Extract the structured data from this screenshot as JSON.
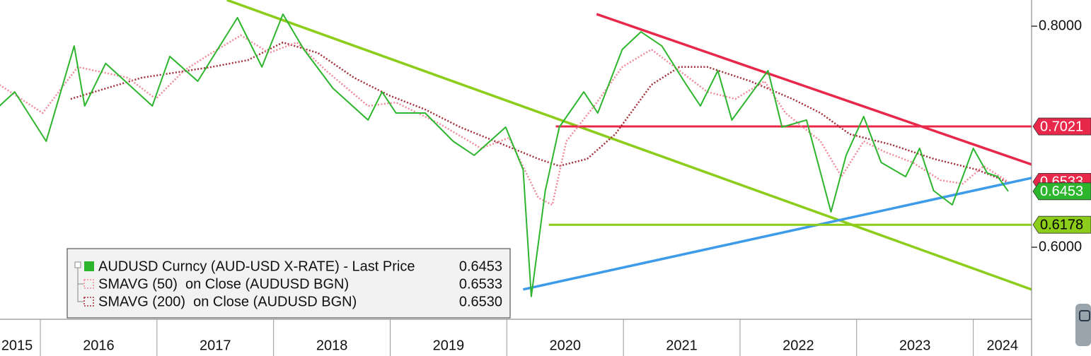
{
  "chart_data": {
    "type": "line",
    "log_scale": true,
    "xlim": [
      2015.654,
      2024.5
    ],
    "ylim": [
      0.5463,
      0.8277
    ],
    "xticks": [
      {
        "value": 2015.8,
        "label": "2015"
      },
      {
        "value": 2016.5,
        "label": "2016"
      },
      {
        "value": 2017.5,
        "label": "2017"
      },
      {
        "value": 2018.5,
        "label": "2018"
      },
      {
        "value": 2019.5,
        "label": "2019"
      },
      {
        "value": 2020.5,
        "label": "2020"
      },
      {
        "value": 2021.5,
        "label": "2021"
      },
      {
        "value": 2022.5,
        "label": "2022"
      },
      {
        "value": 2023.5,
        "label": "2023"
      },
      {
        "value": 2024.25,
        "label": "2024"
      }
    ],
    "yticks": [
      {
        "value": 0.8,
        "label": "0.8000"
      },
      {
        "value": 0.6,
        "label": "0.6000"
      }
    ],
    "series": [
      {
        "name": "AUDUSD Curncy (AUD-USD X-RATE) - Last Price",
        "color": "#2db52d",
        "tag_color": "#2db52d",
        "last": {
          "value": 0.6453,
          "label": "0.6453"
        },
        "x": [
          2015.65,
          2015.78,
          2016.05,
          2016.29,
          2016.38,
          2016.56,
          2016.96,
          2017.11,
          2017.35,
          2017.69,
          2017.9,
          2018.08,
          2018.26,
          2018.51,
          2018.81,
          2018.93,
          2019.05,
          2019.3,
          2019.54,
          2019.72,
          2019.99,
          2020.14,
          2020.21,
          2020.33,
          2020.45,
          2020.66,
          2020.78,
          2020.99,
          2021.15,
          2021.33,
          2021.54,
          2021.66,
          2021.81,
          2021.93,
          2022.24,
          2022.36,
          2022.57,
          2022.78,
          2022.91,
          2023.06,
          2023.21,
          2023.42,
          2023.54,
          2023.66,
          2023.82,
          2024.0,
          2024.12,
          2024.21,
          2024.3
        ],
        "values": [
          0.7211,
          0.7344,
          0.6887,
          0.7796,
          0.7211,
          0.7621,
          0.7211,
          0.7691,
          0.7447,
          0.8089,
          0.7586,
          0.8126,
          0.7761,
          0.7378,
          0.708,
          0.7344,
          0.7145,
          0.7145,
          0.6887,
          0.6762,
          0.7015,
          0.6638,
          0.5627,
          0.6458,
          0.7015,
          0.7344,
          0.7145,
          0.7761,
          0.7941,
          0.7796,
          0.7412,
          0.7211,
          0.755,
          0.708,
          0.755,
          0.7015,
          0.708,
          0.6282,
          0.6762,
          0.7112,
          0.67,
          0.6577,
          0.6824,
          0.6458,
          0.634,
          0.6824,
          0.6608,
          0.6577,
          0.6453
        ]
      },
      {
        "name": "SMAVG (50)  on Close (AUDUSD BGN)",
        "color": "#f08a9a",
        "tag_color": "#e8284a",
        "last": {
          "value": 0.6533,
          "label": "0.6533"
        },
        "x": [
          2015.65,
          2016.02,
          2016.32,
          2016.75,
          2016.99,
          2017.23,
          2017.47,
          2017.72,
          2017.96,
          2018.2,
          2018.45,
          2018.81,
          2019.05,
          2019.42,
          2019.78,
          2020.02,
          2020.27,
          2020.39,
          2020.51,
          2020.75,
          2020.99,
          2021.24,
          2021.48,
          2021.72,
          2021.96,
          2022.21,
          2022.39,
          2022.69,
          2022.87,
          2023.06,
          2023.24,
          2023.48,
          2023.72,
          2023.91,
          2024.09,
          2024.3
        ],
        "values": [
          0.7412,
          0.7145,
          0.7586,
          0.7481,
          0.7277,
          0.755,
          0.7726,
          0.7905,
          0.7726,
          0.7832,
          0.755,
          0.7211,
          0.7244,
          0.7048,
          0.6824,
          0.6919,
          0.6399,
          0.634,
          0.6887,
          0.7211,
          0.7586,
          0.7761,
          0.755,
          0.7344,
          0.7277,
          0.7447,
          0.7145,
          0.6887,
          0.6577,
          0.6887,
          0.6793,
          0.67,
          0.6547,
          0.6517,
          0.6669,
          0.6533
        ]
      },
      {
        "name": "SMAVG (200)  on Close (AUDUSD BGN)",
        "color": "#a0303a",
        "last": {
          "value": 0.653,
          "label": "0.6530"
        },
        "x": [
          2016.26,
          2016.87,
          2017.47,
          2017.78,
          2018.08,
          2018.38,
          2018.69,
          2018.99,
          2019.3,
          2019.6,
          2019.9,
          2020.27,
          2020.45,
          2020.69,
          2020.93,
          2021.24,
          2021.48,
          2021.72,
          2022.09,
          2022.45,
          2022.69,
          2022.94,
          2023.3,
          2023.66,
          2024.03,
          2024.3
        ],
        "values": [
          0.7277,
          0.7481,
          0.7586,
          0.7654,
          0.7832,
          0.7726,
          0.7481,
          0.7311,
          0.7178,
          0.7015,
          0.6887,
          0.6731,
          0.6669,
          0.6731,
          0.6951,
          0.7412,
          0.7586,
          0.7586,
          0.7447,
          0.7277,
          0.7145,
          0.6951,
          0.6856,
          0.6731,
          0.6638,
          0.653
        ]
      }
    ],
    "trendlines": [
      {
        "color": "#8ccc1a",
        "x": [
          2017.6,
          2024.5
        ],
        "values": [
          0.8277,
          0.5679
        ]
      },
      {
        "color": "#e8284a",
        "x": [
          2020.77,
          2024.5
        ],
        "values": [
          0.8126,
          0.6682
        ]
      },
      {
        "color": "#3d9be9",
        "x": [
          2020.14,
          2024.5
        ],
        "values": [
          0.5679,
          0.6566
        ]
      }
    ],
    "levels": [
      {
        "value": 0.7021,
        "start": 2020.42,
        "color": "#e8284a"
      },
      {
        "value": 0.6178,
        "start": 2020.36,
        "color": "#8ccc1a"
      }
    ]
  }
}
